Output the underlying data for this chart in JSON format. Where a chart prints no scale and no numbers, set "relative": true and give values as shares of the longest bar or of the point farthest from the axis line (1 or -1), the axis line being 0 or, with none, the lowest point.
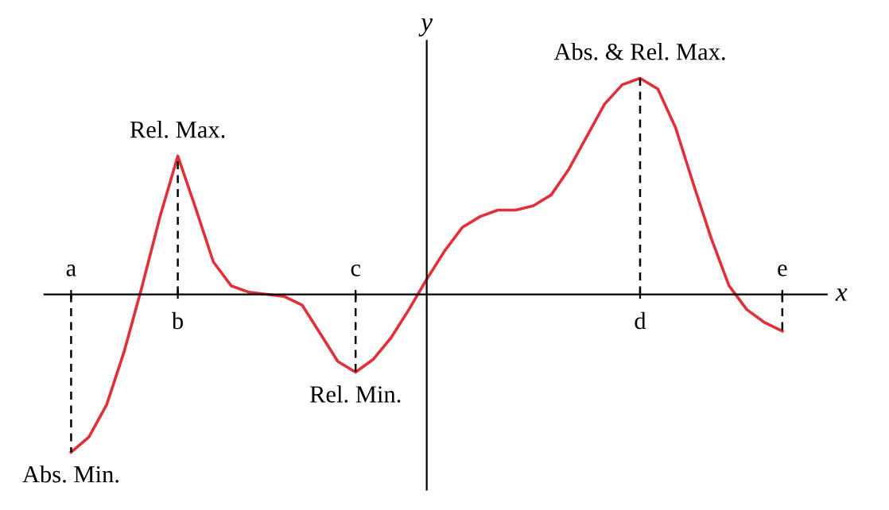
{
  "chart_data": {
    "type": "line",
    "relative": true,
    "xlabel": "x",
    "ylabel": "y",
    "categories": [
      "a",
      null,
      null,
      null,
      null,
      null,
      "b",
      null,
      null,
      null,
      null,
      null,
      null,
      null,
      null,
      null,
      "c",
      null,
      null,
      null,
      null,
      null,
      null,
      null,
      null,
      null,
      null,
      null,
      null,
      null,
      null,
      null,
      "d",
      null,
      null,
      null,
      null,
      null,
      null,
      null,
      "e"
    ],
    "series": [
      {
        "color": "#e0303a",
        "values": [
          -0.73,
          -0.66,
          -0.51,
          -0.26,
          0.04,
          0.36,
          0.64,
          0.4,
          0.15,
          0.04,
          0.01,
          0,
          -0.01,
          -0.05,
          -0.18,
          -0.31,
          -0.36,
          -0.3,
          -0.2,
          -0.07,
          0.07,
          0.2,
          0.31,
          0.36,
          0.39,
          0.39,
          0.41,
          0.46,
          0.58,
          0.73,
          0.88,
          0.97,
          1,
          0.95,
          0.77,
          0.51,
          0.26,
          0.04,
          -0.07,
          -0.13,
          -0.17
        ]
      }
    ],
    "annotations": [
      {
        "text": "Abs. Min.",
        "x": "a",
        "y": -0.73
      },
      {
        "text": "Rel. Max.",
        "x": "b",
        "y": 0.64
      },
      {
        "text": "Rel. Min.",
        "x": "c",
        "y": -0.36
      },
      {
        "text": "Abs. & Rel. Max.",
        "x": "d",
        "y": 1
      }
    ]
  }
}
